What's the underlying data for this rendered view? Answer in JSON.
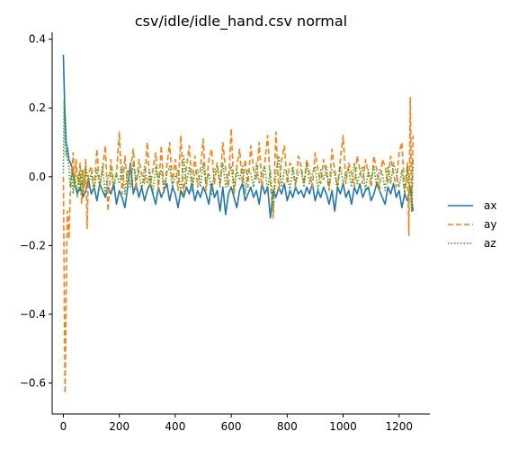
{
  "chart_data": {
    "type": "line",
    "title": "csv/idle/idle_hand.csv normal",
    "xlabel": "",
    "ylabel": "",
    "xlim": [
      -40,
      1310
    ],
    "ylim": [
      -0.69,
      0.42
    ],
    "xticks": [
      0,
      200,
      400,
      600,
      800,
      1000,
      1200
    ],
    "xtick_labels": [
      "0",
      "200",
      "400",
      "600",
      "800",
      "1000",
      "1200"
    ],
    "yticks": [
      -0.6,
      -0.4,
      -0.2,
      0.0,
      0.2,
      0.4
    ],
    "ytick_labels": [
      "−0.6",
      "−0.4",
      "−0.2",
      "0.0",
      "0.2",
      "0.4"
    ],
    "grid": false,
    "legend_position": "right",
    "series": [
      {
        "name": "ax",
        "color": "#1f77b4",
        "dash": "solid",
        "x": [
          0,
          5,
          10,
          15,
          20,
          30,
          40,
          50,
          60,
          70,
          80,
          90,
          100,
          110,
          120,
          130,
          140,
          150,
          160,
          170,
          180,
          190,
          200,
          210,
          220,
          230,
          240,
          250,
          260,
          270,
          280,
          290,
          300,
          310,
          320,
          330,
          340,
          350,
          360,
          370,
          380,
          390,
          400,
          410,
          420,
          430,
          440,
          450,
          460,
          470,
          480,
          490,
          500,
          510,
          520,
          530,
          540,
          550,
          560,
          570,
          580,
          590,
          600,
          610,
          620,
          630,
          640,
          650,
          660,
          670,
          680,
          690,
          700,
          710,
          720,
          730,
          740,
          750,
          760,
          770,
          780,
          790,
          800,
          810,
          820,
          830,
          840,
          850,
          860,
          870,
          880,
          890,
          900,
          910,
          920,
          930,
          940,
          950,
          960,
          970,
          980,
          990,
          1000,
          1010,
          1020,
          1030,
          1040,
          1050,
          1060,
          1070,
          1080,
          1090,
          1100,
          1110,
          1120,
          1130,
          1140,
          1150,
          1160,
          1170,
          1180,
          1190,
          1200,
          1210,
          1220,
          1230,
          1240,
          1250
        ],
        "values": [
          0.355,
          0.2,
          0.1,
          0.08,
          0.05,
          0.03,
          -0.02,
          -0.05,
          -0.03,
          -0.06,
          -0.04,
          -0.01,
          -0.05,
          -0.03,
          -0.07,
          -0.02,
          -0.04,
          -0.06,
          -0.03,
          -0.05,
          -0.02,
          -0.08,
          -0.04,
          -0.06,
          -0.09,
          -0.03,
          0.04,
          -0.05,
          -0.02,
          -0.06,
          -0.03,
          -0.07,
          -0.04,
          -0.02,
          -0.05,
          -0.08,
          -0.03,
          -0.06,
          -0.04,
          -0.02,
          -0.07,
          -0.03,
          -0.05,
          -0.09,
          -0.04,
          -0.06,
          -0.03,
          -0.05,
          -0.02,
          -0.07,
          -0.04,
          -0.06,
          -0.03,
          -0.05,
          -0.08,
          -0.02,
          -0.06,
          -0.04,
          -0.1,
          -0.03,
          -0.11,
          -0.05,
          -0.03,
          -0.06,
          -0.09,
          -0.04,
          -0.02,
          -0.07,
          -0.05,
          -0.03,
          -0.06,
          -0.04,
          -0.08,
          -0.02,
          -0.05,
          -0.03,
          -0.12,
          -0.04,
          -0.06,
          -0.03,
          -0.05,
          -0.02,
          -0.07,
          -0.04,
          -0.06,
          -0.03,
          -0.05,
          -0.04,
          -0.06,
          -0.03,
          -0.05,
          -0.02,
          -0.07,
          -0.04,
          -0.06,
          -0.03,
          -0.05,
          -0.08,
          -0.04,
          -0.1,
          -0.03,
          -0.05,
          -0.02,
          -0.06,
          -0.04,
          -0.08,
          -0.03,
          -0.05,
          -0.02,
          -0.06,
          -0.04,
          -0.03,
          -0.07,
          -0.05,
          -0.02,
          -0.04,
          -0.06,
          -0.08,
          -0.03,
          -0.05,
          -0.02,
          -0.06,
          -0.04,
          -0.09,
          -0.05,
          -0.07,
          -0.03,
          -0.1
        ]
      },
      {
        "name": "ay",
        "color": "#ff7f0e",
        "dash": "dashed",
        "x": [
          0,
          3,
          6,
          9,
          12,
          15,
          20,
          25,
          30,
          35,
          40,
          45,
          50,
          55,
          60,
          65,
          70,
          75,
          80,
          85,
          90,
          100,
          110,
          120,
          130,
          140,
          150,
          160,
          170,
          180,
          190,
          200,
          210,
          220,
          230,
          240,
          250,
          260,
          270,
          280,
          290,
          300,
          310,
          320,
          330,
          340,
          350,
          360,
          370,
          380,
          390,
          400,
          410,
          420,
          430,
          440,
          450,
          460,
          470,
          480,
          490,
          500,
          510,
          520,
          530,
          540,
          550,
          560,
          570,
          580,
          590,
          600,
          610,
          620,
          630,
          640,
          650,
          660,
          670,
          680,
          690,
          700,
          710,
          720,
          730,
          740,
          750,
          760,
          770,
          780,
          790,
          800,
          810,
          820,
          830,
          840,
          850,
          860,
          870,
          880,
          890,
          900,
          910,
          920,
          930,
          940,
          950,
          960,
          970,
          980,
          990,
          1000,
          1010,
          1020,
          1030,
          1040,
          1050,
          1060,
          1070,
          1080,
          1090,
          1100,
          1110,
          1120,
          1130,
          1140,
          1150,
          1160,
          1170,
          1180,
          1190,
          1200,
          1210,
          1220,
          1230,
          1235,
          1240,
          1245,
          1250
        ],
        "values": [
          0.0,
          -0.3,
          -0.63,
          -0.45,
          -0.2,
          -0.1,
          -0.18,
          -0.05,
          0.02,
          0.07,
          -0.03,
          0.05,
          0.0,
          -0.02,
          0.04,
          -0.08,
          0.02,
          -0.03,
          0.05,
          -0.15,
          0.01,
          0.03,
          -0.04,
          0.08,
          -0.03,
          0.02,
          0.09,
          -0.1,
          0.05,
          -0.02,
          0.01,
          0.13,
          -0.05,
          0.06,
          -0.03,
          0.02,
          0.08,
          -0.04,
          0.05,
          0.01,
          -0.02,
          0.1,
          -0.03,
          0.02,
          0.07,
          -0.04,
          0.09,
          -0.05,
          0.03,
          0.1,
          -0.02,
          0.05,
          -0.04,
          0.12,
          -0.05,
          0.03,
          0.09,
          -0.02,
          0.06,
          -0.03,
          0.02,
          0.11,
          -0.04,
          0.05,
          0.08,
          -0.02,
          0.04,
          -0.03,
          0.1,
          0.02,
          -0.03,
          0.14,
          -0.05,
          0.03,
          0.08,
          -0.02,
          0.05,
          -0.03,
          0.09,
          0.02,
          -0.01,
          0.1,
          -0.03,
          0.04,
          0.12,
          -0.02,
          -0.12,
          0.13,
          -0.04,
          0.05,
          0.09,
          -0.02,
          0.04,
          0.02,
          -0.03,
          0.06,
          0.03,
          -0.02,
          0.05,
          0.01,
          -0.03,
          0.07,
          0.02,
          -0.02,
          0.05,
          0.01,
          -0.04,
          0.08,
          0.02,
          -0.03,
          0.05,
          0.12,
          -0.02,
          0.04,
          0.01,
          -0.03,
          0.06,
          0.02,
          -0.02,
          0.05,
          0.01,
          -0.03,
          0.06,
          0.02,
          -0.04,
          0.05,
          0.03,
          -0.02,
          0.06,
          0.01,
          -0.03,
          0.07,
          0.1,
          -0.05,
          0.04,
          -0.17,
          0.23,
          -0.1,
          0.12
        ]
      },
      {
        "name": "az",
        "color": "#2ca02c",
        "dash": "dotted",
        "x": [
          0,
          3,
          6,
          9,
          12,
          15,
          20,
          25,
          30,
          35,
          40,
          45,
          50,
          55,
          60,
          65,
          70,
          75,
          80,
          90,
          100,
          110,
          120,
          130,
          140,
          150,
          160,
          170,
          180,
          190,
          200,
          210,
          220,
          230,
          240,
          250,
          260,
          270,
          280,
          290,
          300,
          310,
          320,
          330,
          340,
          350,
          360,
          370,
          380,
          390,
          400,
          410,
          420,
          430,
          440,
          450,
          460,
          470,
          480,
          490,
          500,
          510,
          520,
          530,
          540,
          550,
          560,
          570,
          580,
          590,
          600,
          610,
          620,
          630,
          640,
          650,
          660,
          670,
          680,
          690,
          700,
          710,
          720,
          730,
          740,
          750,
          760,
          770,
          780,
          790,
          800,
          810,
          820,
          830,
          840,
          850,
          860,
          870,
          880,
          890,
          900,
          910,
          920,
          930,
          940,
          950,
          960,
          970,
          980,
          990,
          1000,
          1010,
          1020,
          1030,
          1040,
          1050,
          1060,
          1070,
          1080,
          1090,
          1100,
          1110,
          1120,
          1130,
          1140,
          1150,
          1160,
          1170,
          1180,
          1190,
          1200,
          1210,
          1220,
          1230,
          1240,
          1245,
          1250
        ],
        "values": [
          0.01,
          0.225,
          0.1,
          0.06,
          0.08,
          0.05,
          0.03,
          -0.03,
          0.01,
          -0.05,
          0.0,
          -0.02,
          -0.06,
          0.01,
          -0.04,
          0.02,
          -0.05,
          -0.01,
          0.03,
          -0.02,
          0.01,
          -0.04,
          0.02,
          -0.03,
          0.03,
          -0.05,
          0.0,
          0.02,
          -0.04,
          0.01,
          -0.02,
          0.03,
          -0.05,
          0.02,
          -0.03,
          0.04,
          -0.01,
          0.02,
          -0.04,
          0.03,
          -0.02,
          0.01,
          -0.05,
          0.03,
          -0.01,
          0.02,
          -0.04,
          0.01,
          0.03,
          -0.03,
          0.0,
          0.02,
          -0.05,
          0.06,
          -0.02,
          0.03,
          -0.04,
          0.01,
          0.02,
          -0.03,
          0.04,
          -0.02,
          0.01,
          -0.05,
          0.02,
          0.03,
          -0.02,
          0.04,
          -0.03,
          0.01,
          0.03,
          -0.04,
          0.02,
          -0.01,
          0.03,
          -0.05,
          0.02,
          0.01,
          -0.03,
          0.04,
          -0.02,
          0.01,
          0.03,
          -0.04,
          0.02,
          -0.1,
          0.01,
          0.06,
          -0.03,
          0.02,
          0.01,
          -0.04,
          0.03,
          -0.02,
          0.01,
          0.02,
          -0.03,
          0.04,
          -0.02,
          0.01,
          0.03,
          -0.04,
          0.02,
          -0.01,
          0.03,
          -0.03,
          0.02,
          0.01,
          -0.04,
          0.03,
          -0.02,
          0.01,
          0.02,
          -0.03,
          0.04,
          -0.02,
          0.01,
          0.03,
          -0.04,
          0.02,
          -0.01,
          0.03,
          -0.03,
          0.02,
          0.01,
          -0.04,
          0.03,
          -0.02,
          0.04,
          0.01,
          -0.03,
          0.02,
          -0.05,
          0.03,
          -0.04,
          -0.1,
          0.05
        ]
      }
    ]
  }
}
